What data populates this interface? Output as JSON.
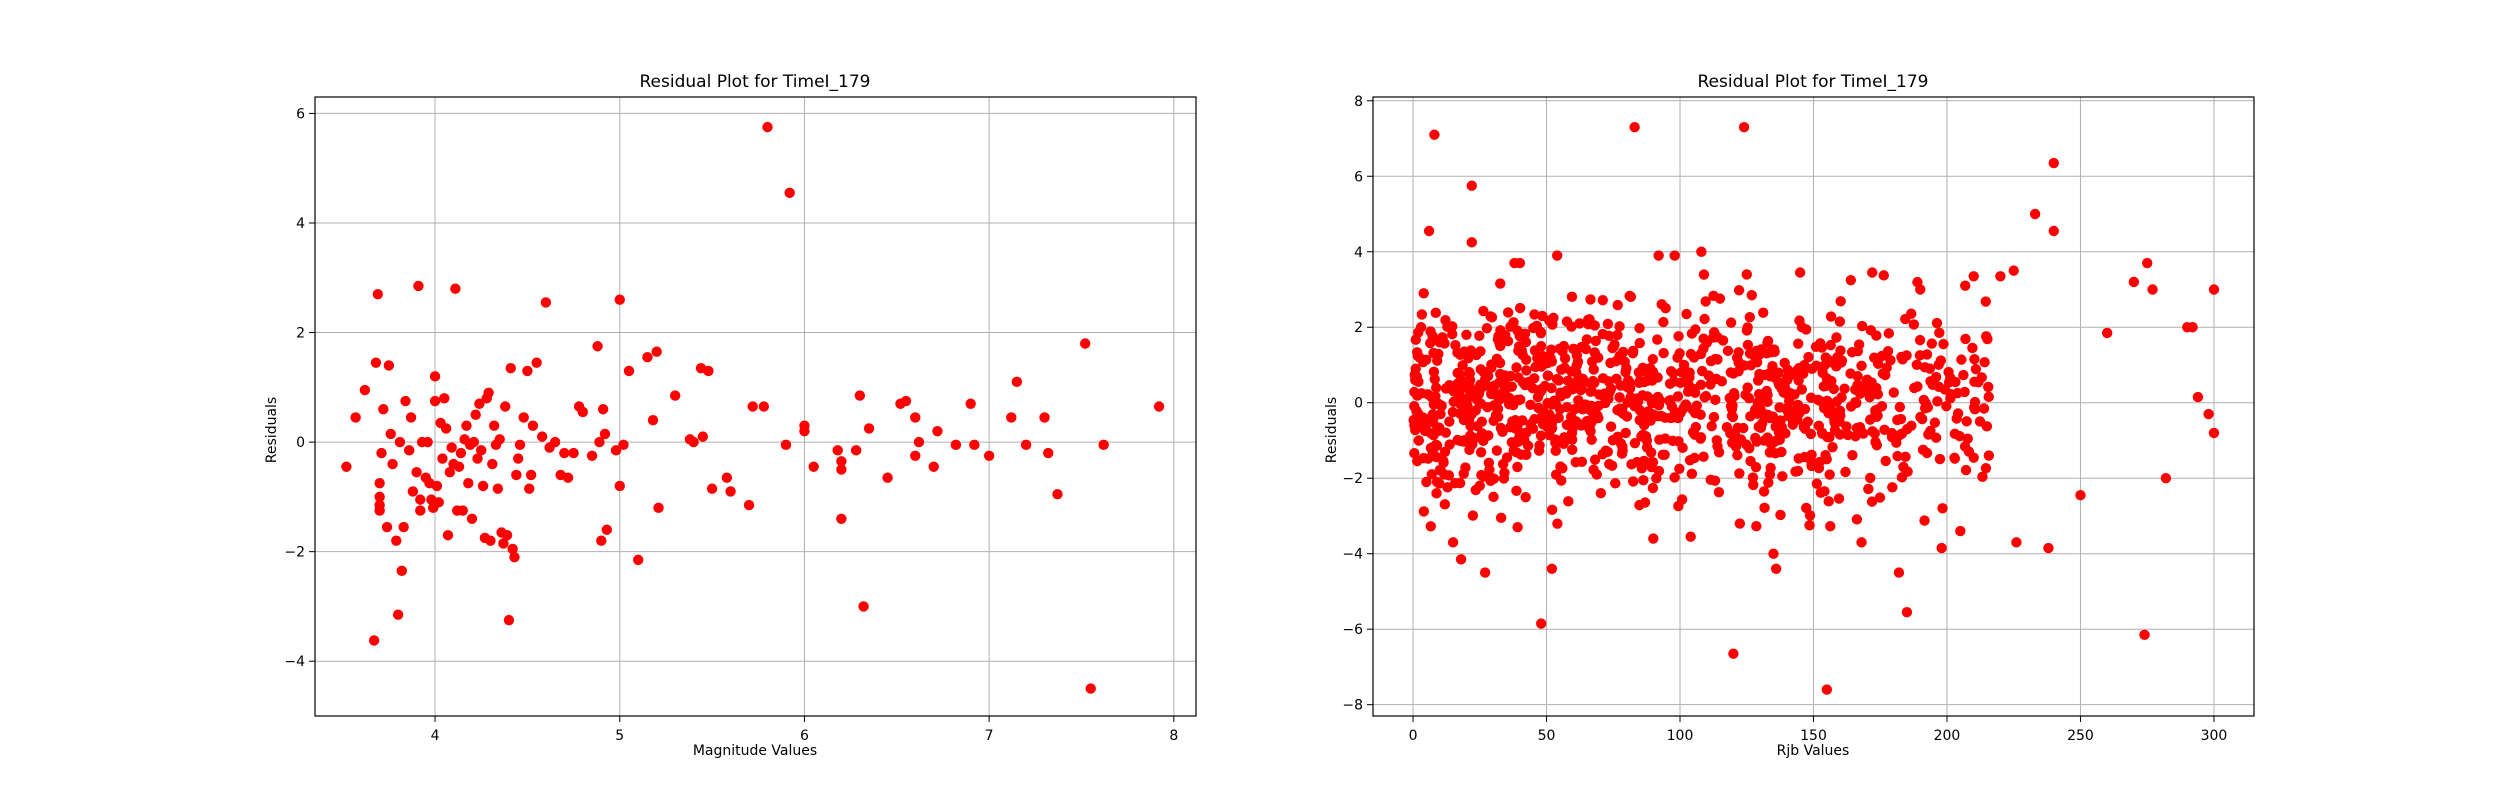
{
  "chart_data": [
    {
      "type": "scatter",
      "title": "Residual Plot for TimeI_179",
      "xlabel": "Magnitude Values",
      "ylabel": "Residuals",
      "xlim": [
        3.35,
        8.12
      ],
      "ylim": [
        -5.0,
        6.3
      ],
      "xticks": [
        4,
        5,
        6,
        7,
        8
      ],
      "yticks": [
        -4,
        -2,
        0,
        2,
        4,
        6
      ],
      "grid": true,
      "color": "#ff0000",
      "points": [
        [
          3.52,
          -0.45
        ],
        [
          3.57,
          0.45
        ],
        [
          3.62,
          0.95
        ],
        [
          3.67,
          -3.62
        ],
        [
          3.68,
          1.45
        ],
        [
          3.69,
          2.7
        ],
        [
          3.7,
          -0.75
        ],
        [
          3.7,
          -1.0
        ],
        [
          3.7,
          -1.15
        ],
        [
          3.7,
          -1.25
        ],
        [
          3.71,
          -0.2
        ],
        [
          3.72,
          0.6
        ],
        [
          3.74,
          -1.55
        ],
        [
          3.75,
          1.4
        ],
        [
          3.76,
          0.15
        ],
        [
          3.77,
          -0.4
        ],
        [
          3.79,
          -1.8
        ],
        [
          3.8,
          -3.15
        ],
        [
          3.81,
          0.0
        ],
        [
          3.82,
          -2.35
        ],
        [
          3.83,
          -1.55
        ],
        [
          3.84,
          0.75
        ],
        [
          3.86,
          -0.15
        ],
        [
          3.87,
          0.45
        ],
        [
          3.88,
          -0.9
        ],
        [
          3.9,
          -0.55
        ],
        [
          3.91,
          2.85
        ],
        [
          3.92,
          -1.05
        ],
        [
          3.92,
          -1.25
        ],
        [
          3.93,
          0.0
        ],
        [
          3.95,
          -0.65
        ],
        [
          3.96,
          0.0
        ],
        [
          3.97,
          -0.75
        ],
        [
          3.98,
          -1.05
        ],
        [
          3.99,
          -1.2
        ],
        [
          4.0,
          1.2
        ],
        [
          4.0,
          0.75
        ],
        [
          4.01,
          -0.8
        ],
        [
          4.02,
          -1.1
        ],
        [
          4.03,
          0.35
        ],
        [
          4.04,
          -0.3
        ],
        [
          4.05,
          0.8
        ],
        [
          4.06,
          0.25
        ],
        [
          4.07,
          -1.7
        ],
        [
          4.08,
          -0.55
        ],
        [
          4.09,
          -0.1
        ],
        [
          4.1,
          -0.4
        ],
        [
          4.11,
          2.8
        ],
        [
          4.12,
          -1.25
        ],
        [
          4.13,
          -0.45
        ],
        [
          4.14,
          -0.2
        ],
        [
          4.15,
          -1.25
        ],
        [
          4.16,
          0.05
        ],
        [
          4.17,
          0.3
        ],
        [
          4.18,
          -0.75
        ],
        [
          4.19,
          -0.05
        ],
        [
          4.2,
          -1.4
        ],
        [
          4.21,
          0.0
        ],
        [
          4.22,
          0.5
        ],
        [
          4.23,
          -0.3
        ],
        [
          4.24,
          0.7
        ],
        [
          4.25,
          -0.15
        ],
        [
          4.26,
          -0.8
        ],
        [
          4.27,
          -1.75
        ],
        [
          4.28,
          0.8
        ],
        [
          4.29,
          0.9
        ],
        [
          4.3,
          -1.8
        ],
        [
          4.31,
          -0.4
        ],
        [
          4.32,
          0.3
        ],
        [
          4.33,
          -0.05
        ],
        [
          4.34,
          -0.85
        ],
        [
          4.35,
          0.05
        ],
        [
          4.36,
          -1.65
        ],
        [
          4.37,
          -1.85
        ],
        [
          4.38,
          0.65
        ],
        [
          4.39,
          -1.7
        ],
        [
          4.4,
          -3.25
        ],
        [
          4.41,
          1.35
        ],
        [
          4.42,
          -1.95
        ],
        [
          4.43,
          -2.1
        ],
        [
          4.44,
          -0.6
        ],
        [
          4.45,
          -0.3
        ],
        [
          4.46,
          -0.05
        ],
        [
          4.48,
          0.45
        ],
        [
          4.5,
          1.3
        ],
        [
          4.51,
          -0.85
        ],
        [
          4.52,
          -0.6
        ],
        [
          4.53,
          0.3
        ],
        [
          4.55,
          1.45
        ],
        [
          4.58,
          0.1
        ],
        [
          4.6,
          2.55
        ],
        [
          4.62,
          -0.1
        ],
        [
          4.65,
          0.0
        ],
        [
          4.68,
          -0.6
        ],
        [
          4.7,
          -0.2
        ],
        [
          4.72,
          -0.65
        ],
        [
          4.75,
          -0.2
        ],
        [
          4.78,
          0.65
        ],
        [
          4.8,
          0.55
        ],
        [
          4.85,
          -0.25
        ],
        [
          4.88,
          1.75
        ],
        [
          4.89,
          0.0
        ],
        [
          4.9,
          -1.8
        ],
        [
          4.91,
          0.6
        ],
        [
          4.92,
          0.15
        ],
        [
          4.93,
          -1.6
        ],
        [
          4.98,
          -0.15
        ],
        [
          5.0,
          2.6
        ],
        [
          5.0,
          -0.8
        ],
        [
          5.02,
          -0.05
        ],
        [
          5.05,
          1.3
        ],
        [
          5.1,
          -2.15
        ],
        [
          5.15,
          1.55
        ],
        [
          5.18,
          0.4
        ],
        [
          5.2,
          1.65
        ],
        [
          5.21,
          -1.2
        ],
        [
          5.3,
          0.85
        ],
        [
          5.38,
          0.05
        ],
        [
          5.4,
          0.0
        ],
        [
          5.44,
          1.35
        ],
        [
          5.45,
          0.1
        ],
        [
          5.48,
          1.3
        ],
        [
          5.5,
          -0.85
        ],
        [
          5.58,
          -0.65
        ],
        [
          5.6,
          -0.9
        ],
        [
          5.7,
          -1.15
        ],
        [
          5.72,
          0.65
        ],
        [
          5.78,
          0.65
        ],
        [
          5.8,
          5.75
        ],
        [
          5.9,
          -0.05
        ],
        [
          5.92,
          4.55
        ],
        [
          6.0,
          0.3
        ],
        [
          6.0,
          0.2
        ],
        [
          6.05,
          -0.45
        ],
        [
          6.18,
          -0.15
        ],
        [
          6.2,
          -0.35
        ],
        [
          6.2,
          -0.5
        ],
        [
          6.2,
          -1.4
        ],
        [
          6.28,
          -0.15
        ],
        [
          6.3,
          0.85
        ],
        [
          6.32,
          -3.0
        ],
        [
          6.35,
          0.25
        ],
        [
          6.45,
          -0.65
        ],
        [
          6.52,
          0.7
        ],
        [
          6.55,
          0.75
        ],
        [
          6.6,
          0.45
        ],
        [
          6.6,
          -0.25
        ],
        [
          6.62,
          0.0
        ],
        [
          6.7,
          -0.45
        ],
        [
          6.72,
          0.2
        ],
        [
          6.82,
          -0.05
        ],
        [
          6.9,
          0.7
        ],
        [
          6.92,
          -0.05
        ],
        [
          7.0,
          -0.25
        ],
        [
          7.12,
          0.45
        ],
        [
          7.15,
          1.1
        ],
        [
          7.2,
          -0.05
        ],
        [
          7.3,
          0.45
        ],
        [
          7.32,
          -0.2
        ],
        [
          7.37,
          -0.95
        ],
        [
          7.52,
          1.8
        ],
        [
          7.55,
          -4.5
        ],
        [
          7.62,
          -0.05
        ],
        [
          7.92,
          0.65
        ]
      ]
    },
    {
      "type": "scatter",
      "title": "Residual Plot for TimeI_179",
      "xlabel": "Rjb Values",
      "ylabel": "Residuals",
      "xlim": [
        -15,
        315
      ],
      "ylim": [
        -8.3,
        8.1
      ],
      "xticks": [
        0,
        50,
        100,
        150,
        200,
        250,
        300
      ],
      "yticks": [
        -8,
        -6,
        -4,
        -2,
        0,
        2,
        4,
        6,
        8
      ],
      "grid": true,
      "color": "#ff0000",
      "note_generated": "dense cloud",
      "points": [
        [
          0.5,
          -0.6
        ],
        [
          1,
          0.9
        ],
        [
          2,
          -0.5
        ],
        [
          3,
          2.0
        ],
        [
          4,
          2.9
        ],
        [
          5,
          -2.1
        ],
        [
          6,
          4.55
        ],
        [
          8,
          7.1
        ],
        [
          9,
          -2.1
        ],
        [
          10,
          1.6
        ],
        [
          12,
          -1.3
        ],
        [
          15,
          -3.7
        ],
        [
          18,
          -4.15
        ],
        [
          20,
          1.8
        ],
        [
          22,
          5.75
        ],
        [
          22,
          4.25
        ],
        [
          25,
          -2.2
        ],
        [
          27,
          -4.5
        ],
        [
          33,
          -3.05
        ],
        [
          38,
          3.7
        ],
        [
          40,
          3.7
        ],
        [
          48,
          -5.85
        ],
        [
          52,
          -4.4
        ],
        [
          54,
          3.9
        ],
        [
          83,
          7.3
        ],
        [
          90,
          -3.6
        ],
        [
          92,
          3.9
        ],
        [
          98,
          3.9
        ],
        [
          104,
          -3.55
        ],
        [
          108,
          4.0
        ],
        [
          120,
          -6.65
        ],
        [
          124,
          7.3
        ],
        [
          125,
          3.4
        ],
        [
          135,
          -4.0
        ],
        [
          136,
          -4.4
        ],
        [
          145,
          3.45
        ],
        [
          155,
          -7.6
        ],
        [
          168,
          -3.7
        ],
        [
          172,
          3.45
        ],
        [
          182,
          -4.5
        ],
        [
          185,
          -5.55
        ],
        [
          190,
          3.0
        ],
        [
          198,
          -3.85
        ],
        [
          205,
          -3.4
        ],
        [
          210,
          3.35
        ],
        [
          220,
          3.35
        ],
        [
          225,
          3.5
        ],
        [
          226,
          -3.7
        ],
        [
          233,
          5.0
        ],
        [
          238,
          -3.85
        ],
        [
          240,
          6.35
        ],
        [
          240,
          4.55
        ],
        [
          270,
          3.2
        ],
        [
          274,
          -6.15
        ],
        [
          275,
          3.7
        ],
        [
          277,
          3.0
        ],
        [
          290,
          2.0
        ],
        [
          292,
          2.0
        ],
        [
          298,
          -0.3
        ],
        [
          300,
          -0.8
        ],
        [
          300,
          3.0
        ],
        [
          294,
          0.15
        ],
        [
          282,
          -2.0
        ],
        [
          260,
          1.85
        ],
        [
          250,
          -2.45
        ]
      ]
    }
  ]
}
